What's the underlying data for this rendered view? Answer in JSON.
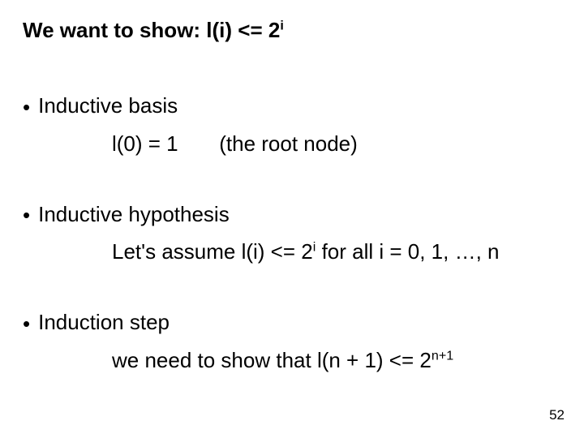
{
  "headline": {
    "prefix": "We want to show:  ",
    "expr_left": "l(i) <= 2",
    "expr_sup": "i"
  },
  "bullet_glyph": "•",
  "basis": {
    "title": "Inductive basis",
    "line_left": "l(0) = 1",
    "line_right": "(the root node)"
  },
  "hypothesis": {
    "title": "Inductive hypothesis",
    "line_pre": "Let's assume l(i) <= 2",
    "line_sup": "i",
    "line_post": " for all i = 0, 1, …, n"
  },
  "step": {
    "title": "Induction step",
    "line_pre": "we need to show that l(n + 1) <= 2",
    "line_sup": "n+1"
  },
  "page_number": "52"
}
